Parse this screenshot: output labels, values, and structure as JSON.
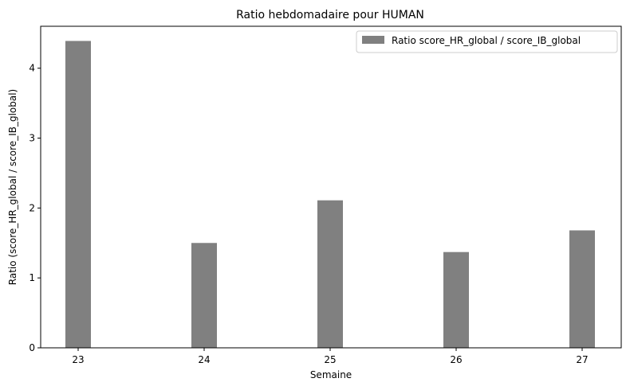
{
  "chart_data": {
    "type": "bar",
    "title": "Ratio hebdomadaire pour HUMAN",
    "xlabel": "Semaine",
    "ylabel": "Ratio (score_HR_global / score_IB_global)",
    "categories": [
      "23",
      "24",
      "25",
      "26",
      "27"
    ],
    "series": [
      {
        "name": "Ratio score_HR_global / score_IB_global",
        "values": [
          4.39,
          1.5,
          2.11,
          1.37,
          1.68
        ],
        "color": "#808080"
      }
    ],
    "ylim": [
      0,
      4.6
    ],
    "yticks": [
      0,
      1,
      2,
      3,
      4
    ],
    "grid": false,
    "legend_position": "top-right"
  }
}
